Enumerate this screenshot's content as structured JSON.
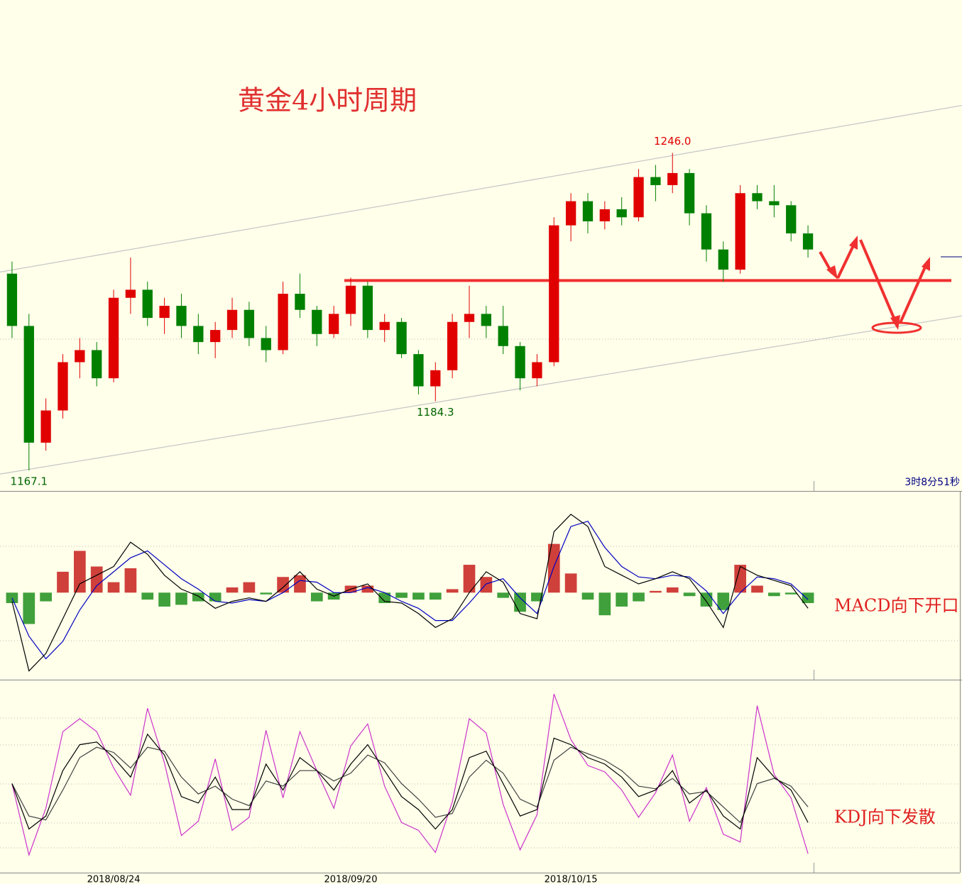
{
  "chart_data": [
    {
      "type": "candlestick",
      "title": "黄金4小时周期",
      "categories": [
        null,
        null,
        null,
        null,
        null,
        null,
        "2018/08/24",
        null,
        null,
        null,
        null,
        null,
        null,
        null,
        null,
        null,
        null,
        null,
        null,
        null,
        "2018/09/20",
        null,
        null,
        null,
        null,
        null,
        null,
        null,
        null,
        null,
        null,
        null,
        null,
        "2018/10/15",
        null,
        null,
        null,
        null,
        null,
        null,
        null,
        null,
        null,
        null,
        null,
        null,
        null,
        null
      ],
      "open": [
        1216,
        1203,
        1174,
        1182,
        1194,
        1197,
        1190,
        1210,
        1212,
        1205,
        1208,
        1203,
        1199,
        1202,
        1207,
        1200,
        1197,
        1211,
        1207,
        1201,
        1206,
        1213,
        1202,
        1204,
        1196,
        1188,
        1192,
        1204,
        1206,
        1203,
        1198,
        1190,
        1194,
        1228,
        1234,
        1229,
        1232,
        1230,
        1240,
        1238,
        1241,
        1231,
        1222,
        1217,
        1236,
        1234,
        1233,
        1226
      ],
      "high": [
        1219,
        1206,
        1185,
        1196,
        1200,
        1199,
        1212,
        1220,
        1214,
        1210,
        1211,
        1206,
        1204,
        1210,
        1209,
        1203,
        1214,
        1216,
        1208,
        1208,
        1215,
        1214,
        1206,
        1205,
        1197,
        1194,
        1206,
        1213,
        1208,
        1208,
        1199,
        1196,
        1230,
        1236,
        1236,
        1234,
        1235,
        1242,
        1243,
        1246.0,
        1242,
        1233,
        1224,
        1238,
        1238,
        1238,
        1234,
        1228
      ],
      "low": [
        1200,
        1167.1,
        1172,
        1180,
        1190,
        1188,
        1189,
        1206,
        1203,
        1201,
        1200,
        1196,
        1195,
        1200,
        1198,
        1194,
        1196,
        1205,
        1198,
        1200,
        1203,
        1200,
        1199,
        1195,
        1186,
        1184.3,
        1190,
        1200,
        1200,
        1196,
        1187,
        1188,
        1193,
        1224,
        1226,
        1227,
        1228,
        1229,
        1234,
        1236,
        1228,
        1219,
        1214,
        1216,
        1232,
        1230,
        1224,
        1220
      ],
      "close": [
        1203,
        1174,
        1182,
        1194,
        1197,
        1190,
        1210,
        1212,
        1205,
        1208,
        1203,
        1199,
        1202,
        1207,
        1200,
        1197,
        1211,
        1207,
        1201,
        1206,
        1213,
        1202,
        1204,
        1196,
        1188,
        1192,
        1204,
        1206,
        1203,
        1198,
        1190,
        1194,
        1228,
        1234,
        1229,
        1232,
        1230,
        1240,
        1238,
        1241,
        1231,
        1222,
        1217,
        1236,
        1234,
        1233,
        1226,
        1222
      ],
      "up_color": "#e00000",
      "down_color": "#008000",
      "ylim": [
        1162,
        1284
      ],
      "channel": [
        [
          1216.4,
          1257.8
        ],
        [
          1166.2,
          1205.5
        ]
      ],
      "channel_color": "#c8c8c8",
      "level": 1214.3,
      "level_color": "#f03030",
      "annotations": [
        {
          "value": 1246.0,
          "label": "1246.0",
          "color": "#e00000"
        },
        {
          "value": 1184.3,
          "label": "1184.3",
          "color": "#006400"
        },
        {
          "value": 1167.1,
          "label": "1167.1",
          "color": "#006400"
        }
      ],
      "countdown": "3时8分51秒"
    },
    {
      "type": "macd",
      "ylim": [
        -5,
        5.8
      ],
      "histogram": [
        -0.6,
        -1.8,
        -0.5,
        1.2,
        2.4,
        1.5,
        0.6,
        1.4,
        -0.4,
        -0.8,
        -0.7,
        -0.5,
        -0.5,
        0.3,
        0.6,
        -0.1,
        0.9,
        1.0,
        -0.5,
        -0.4,
        0.4,
        0.4,
        -0.6,
        -0.3,
        -0.4,
        -0.4,
        0.2,
        1.6,
        0.9,
        -0.3,
        -1.1,
        -0.5,
        2.8,
        1.1,
        -0.4,
        -1.3,
        -0.8,
        -0.5,
        0.1,
        0.3,
        -0.2,
        -0.8,
        -1.0,
        1.6,
        0.4,
        -0.2,
        -0.1,
        -0.6
      ],
      "dif": [
        -0.5,
        -4.5,
        -3.5,
        -1.5,
        0.5,
        1.0,
        1.5,
        2.9,
        2.2,
        1.0,
        0.2,
        -0.2,
        -0.9,
        -0.5,
        -0.3,
        -0.5,
        0.3,
        1.2,
        0.2,
        -0.2,
        0.2,
        0.5,
        -0.5,
        -0.6,
        -1.2,
        -2.0,
        -1.5,
        0.0,
        1.2,
        0.6,
        -1.2,
        -1.5,
        3.5,
        4.5,
        3.8,
        1.5,
        1.0,
        0.5,
        0.8,
        1.2,
        0.8,
        -0.5,
        -2.0,
        1.5,
        1.0,
        0.7,
        0.4,
        -0.9
      ],
      "dea": [
        -0.3,
        -2.5,
        -3.8,
        -2.8,
        -1.0,
        0.4,
        1.2,
        2.0,
        2.4,
        1.6,
        0.8,
        0.2,
        -0.5,
        -0.6,
        -0.4,
        -0.5,
        0.0,
        0.7,
        0.6,
        0.0,
        0.0,
        0.3,
        0.0,
        -0.5,
        -0.9,
        -1.6,
        -1.6,
        -0.6,
        0.5,
        0.8,
        -0.3,
        -1.2,
        1.5,
        3.8,
        4.1,
        2.6,
        1.5,
        0.9,
        0.8,
        1.0,
        0.9,
        0.1,
        -1.2,
        0.0,
        0.9,
        0.8,
        0.5,
        -0.4
      ],
      "up_color": "#c00000",
      "down_color": "#008000",
      "dif_color": "#000000",
      "dea_color": "#0000c0",
      "note": "MACD向下开口",
      "note_color": "#e02020"
    },
    {
      "type": "kdj",
      "ylim": [
        -18.6,
        129.5
      ],
      "series": [
        {
          "color": "#000000",
          "values": [
            50,
            15,
            25,
            60,
            80,
            82,
            70,
            55,
            88,
            72,
            40,
            35,
            55,
            30,
            30,
            65,
            45,
            70,
            60,
            45,
            65,
            80,
            60,
            40,
            30,
            15,
            30,
            70,
            75,
            50,
            25,
            30,
            85,
            80,
            70,
            65,
            55,
            40,
            45,
            60,
            35,
            45,
            25,
            15,
            70,
            55,
            45,
            20
          ]
        },
        {
          "color": "#404040",
          "values": [
            50,
            25,
            22,
            45,
            70,
            78,
            74,
            62,
            78,
            75,
            55,
            42,
            48,
            38,
            33,
            52,
            48,
            60,
            60,
            52,
            58,
            72,
            66,
            50,
            38,
            24,
            27,
            55,
            68,
            58,
            38,
            32,
            68,
            78,
            73,
            68,
            60,
            48,
            46,
            54,
            42,
            44,
            32,
            20,
            50,
            54,
            48,
            32
          ]
        },
        {
          "color": "#cc33cc",
          "values": [
            50,
            -5,
            31,
            90,
            100,
            90,
            62,
            41,
            108,
            66,
            10,
            21,
            69,
            14,
            24,
            91,
            39,
            90,
            60,
            31,
            79,
            96,
            48,
            20,
            14,
            -3,
            36,
            100,
            89,
            34,
            -1,
            26,
            119,
            84,
            64,
            59,
            45,
            24,
            43,
            72,
            21,
            47,
            11,
            5,
            110,
            57,
            39,
            -4
          ]
        }
      ],
      "note": "KDJ向下发散",
      "note_color": "#e02020"
    }
  ]
}
